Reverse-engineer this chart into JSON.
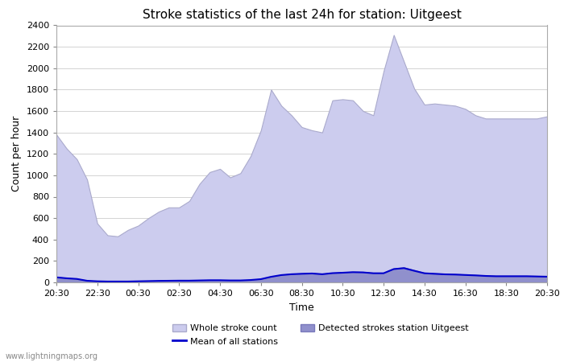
{
  "title": "Stroke statistics of the last 24h for station: Uitgeest",
  "xlabel": "Time",
  "ylabel": "Count per hour",
  "watermark": "www.lightningmaps.org",
  "ylim": [
    0,
    2400
  ],
  "yticks": [
    0,
    200,
    400,
    600,
    800,
    1000,
    1200,
    1400,
    1600,
    1800,
    2000,
    2200,
    2400
  ],
  "xtick_labels": [
    "20:30",
    "22:30",
    "00:30",
    "02:30",
    "04:30",
    "06:30",
    "08:30",
    "10:30",
    "12:30",
    "14:30",
    "16:30",
    "18:30",
    "20:30"
  ],
  "bg_color": "#ffffff",
  "grid_color": "#cccccc",
  "whole_stroke_color": "#ccccee",
  "whole_stroke_edge": "#aaaacc",
  "detected_stroke_color": "#9090cc",
  "detected_stroke_edge": "#7878bb",
  "mean_line_color": "#0000cc",
  "legend_whole_label": "Whole stroke count",
  "legend_mean_label": "Mean of all stations",
  "legend_detected_label": "Detected strokes station Uitgeest",
  "time_hours": [
    0.0,
    0.5,
    1.0,
    1.5,
    2.0,
    2.5,
    3.0,
    3.5,
    4.0,
    4.5,
    5.0,
    5.5,
    6.0,
    6.5,
    7.0,
    7.5,
    8.0,
    8.5,
    9.0,
    9.5,
    10.0,
    10.5,
    11.0,
    11.5,
    12.0,
    12.5,
    13.0,
    13.5,
    14.0,
    14.5,
    15.0,
    15.5,
    16.0,
    16.5,
    17.0,
    17.5,
    18.0,
    18.5,
    19.0,
    19.5,
    20.0,
    20.5,
    21.0,
    21.5,
    22.0,
    22.5,
    23.0,
    23.5,
    24.0
  ],
  "whole_stroke": [
    1380,
    1250,
    1150,
    960,
    550,
    440,
    430,
    490,
    530,
    600,
    660,
    700,
    700,
    760,
    920,
    1030,
    1060,
    980,
    1020,
    1180,
    1420,
    1800,
    1650,
    1560,
    1450,
    1420,
    1400,
    1700,
    1710,
    1700,
    1600,
    1560,
    1970,
    2310,
    2060,
    1810,
    1660,
    1670,
    1660,
    1650,
    1620,
    1560,
    1530,
    1530,
    1530,
    1530,
    1530,
    1530,
    1550
  ],
  "detected_stroke": [
    50,
    42,
    35,
    18,
    12,
    10,
    10,
    10,
    12,
    14,
    16,
    17,
    18,
    18,
    20,
    22,
    22,
    20,
    20,
    24,
    33,
    55,
    72,
    80,
    85,
    88,
    80,
    90,
    95,
    100,
    98,
    90,
    90,
    130,
    140,
    115,
    90,
    85,
    80,
    78,
    74,
    70,
    65,
    62,
    62,
    62,
    62,
    60,
    58
  ],
  "mean_line": [
    47,
    38,
    32,
    15,
    10,
    8,
    8,
    8,
    10,
    12,
    14,
    15,
    16,
    16,
    18,
    20,
    20,
    18,
    18,
    22,
    30,
    52,
    68,
    76,
    80,
    83,
    76,
    86,
    90,
    95,
    93,
    85,
    85,
    124,
    133,
    108,
    85,
    80,
    75,
    73,
    69,
    65,
    60,
    57,
    57,
    57,
    57,
    55,
    53
  ]
}
